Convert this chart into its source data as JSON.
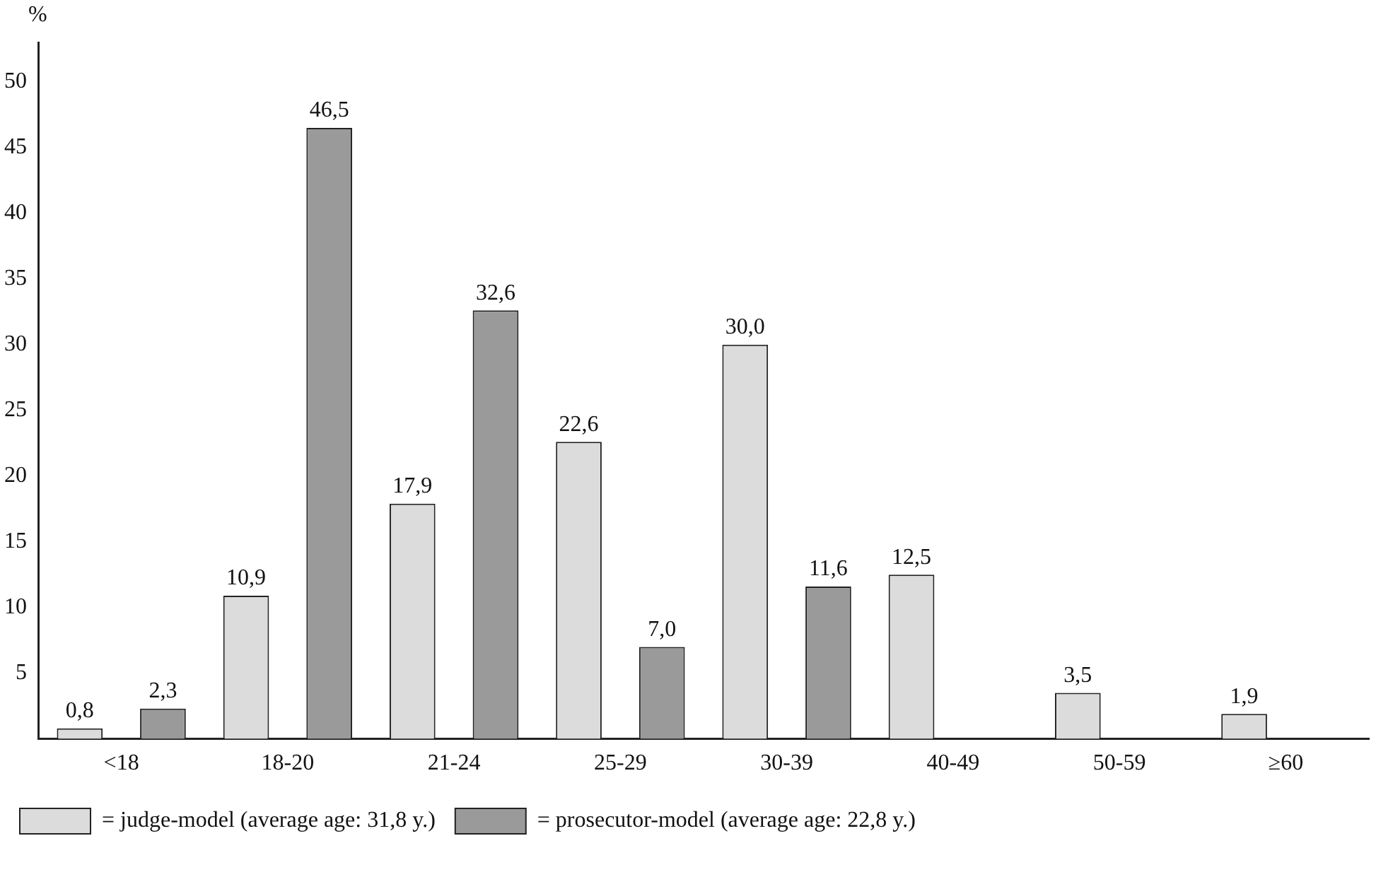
{
  "chart_data": {
    "type": "bar",
    "ylabel": "%",
    "categories": [
      "<18",
      "18-20",
      "21-24",
      "25-29",
      "30-39",
      "40-49",
      "50-59",
      "≥60"
    ],
    "series": [
      {
        "name": "= judge-model (average age: 31,8 y.)",
        "color": "#dcdcdc",
        "values": [
          0.8,
          10.9,
          17.9,
          22.6,
          30.0,
          12.5,
          3.5,
          1.9
        ],
        "value_labels": [
          "0,8",
          "10,9",
          "17,9",
          "22,6",
          "30,0",
          "12,5",
          "3,5",
          "1,9"
        ]
      },
      {
        "name": "= prosecutor-model (average age: 22,8 y.)",
        "color": "#9a9a9a",
        "values": [
          2.3,
          46.5,
          32.6,
          7.0,
          11.6,
          null,
          null,
          null
        ],
        "value_labels": [
          "2,3",
          "46,5",
          "32,6",
          "7,0",
          "11,6",
          null,
          null,
          null
        ]
      }
    ],
    "ylim": [
      0,
      53
    ],
    "yticks": [
      5,
      10,
      15,
      20,
      25,
      30,
      35,
      40,
      45,
      50
    ],
    "grid": false,
    "legend": "bottom left"
  }
}
